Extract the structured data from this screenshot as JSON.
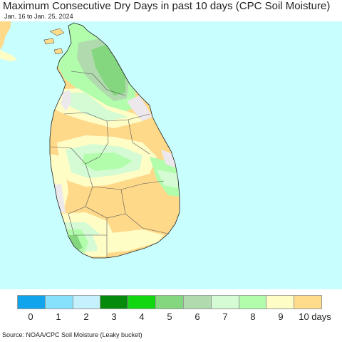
{
  "header": {
    "title": "Maximum Consecutive Dry Days in past 10 days (CPC Soil Moisture)",
    "date_range": "Jan. 16 to Jan. 25, 2024"
  },
  "legend": {
    "colors": [
      "#10a4ec",
      "#86e1fc",
      "#c5f1fd",
      "#068a0b",
      "#11d711",
      "#84d67f",
      "#b1dbae",
      "#d5fbd4",
      "#b1fdab",
      "#fefdc6",
      "#fedc8b"
    ],
    "labels": [
      "0",
      "1",
      "2",
      "3",
      "4",
      "5",
      "6",
      "7",
      "8",
      "9",
      "10 days"
    ]
  },
  "footer": {
    "source": "Source: NOAA/CPC Soil Moisture (Leaky bucket)"
  },
  "map_colors": {
    "ocean": "#c9fefe",
    "land_dry10": "#fed98a",
    "land_9": "#fefdc6",
    "land_8": "#b1fdab",
    "land_7": "#d5fbd4",
    "land_6": "#b1dbae",
    "land_5": "#84d67f",
    "no_data": "#ede8ec"
  }
}
